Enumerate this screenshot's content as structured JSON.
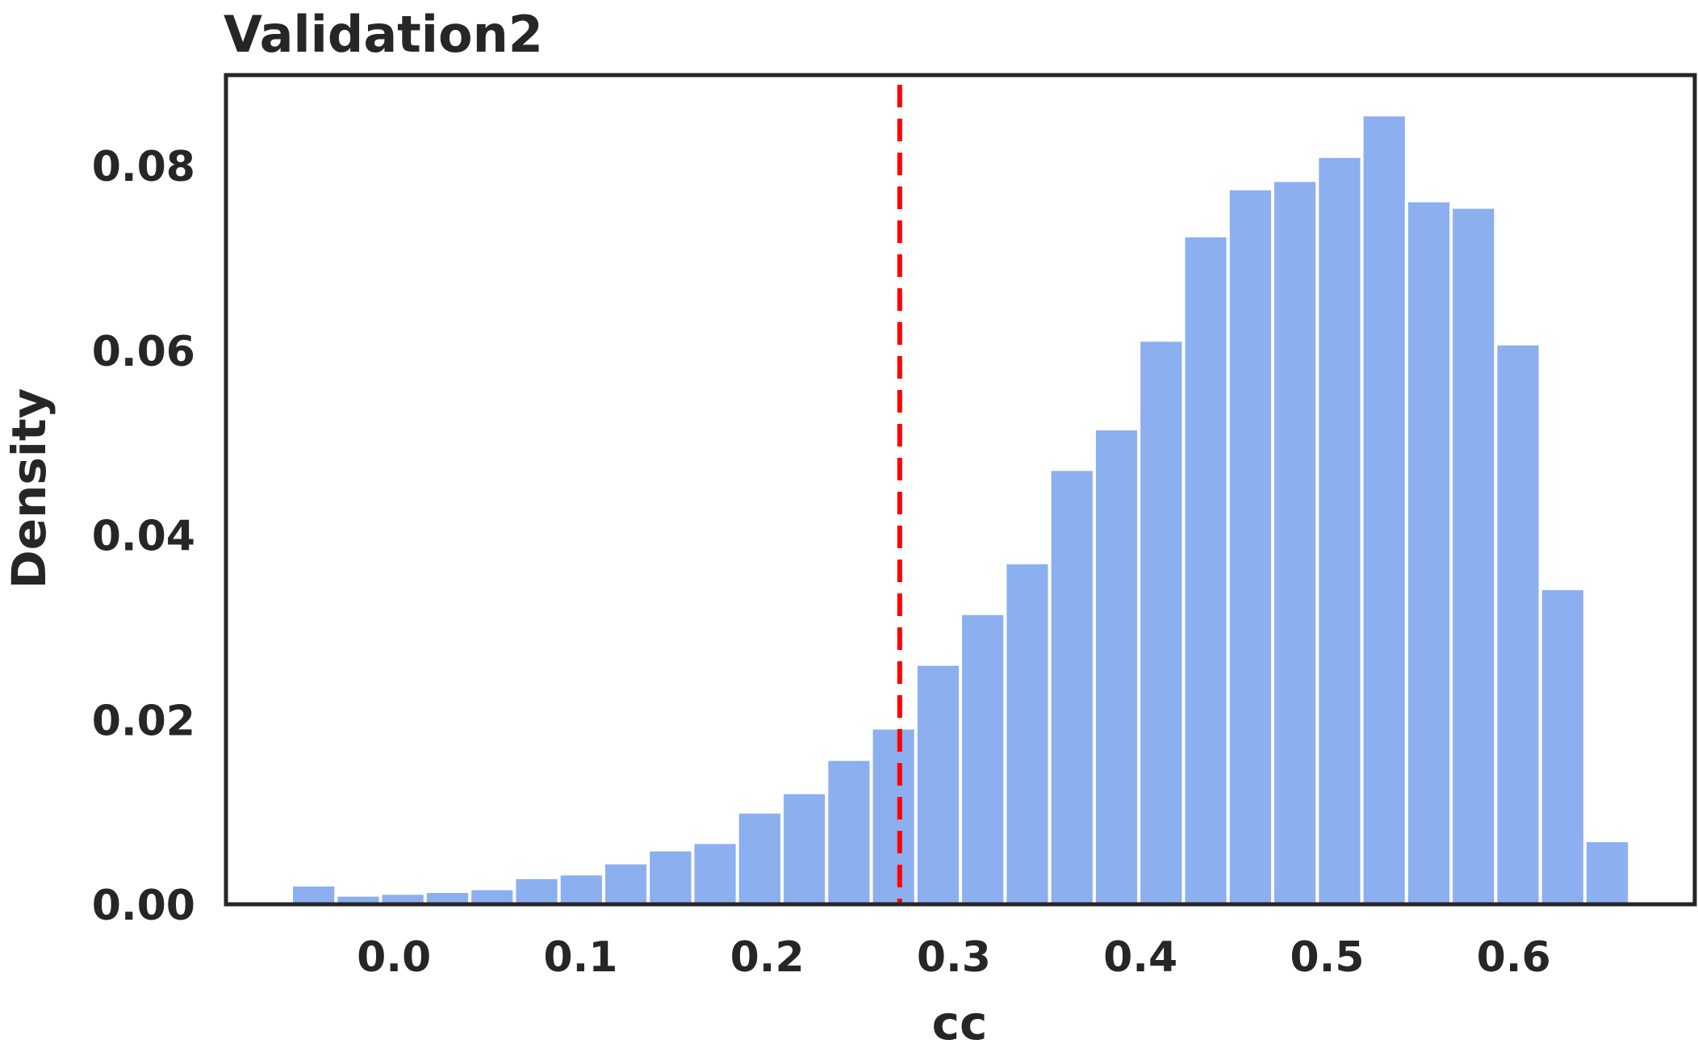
{
  "chart_data": {
    "type": "bar",
    "title": "Validation2",
    "xlabel": "cc",
    "ylabel": "Density",
    "bar_color": "#8cafef",
    "threshold_color": "#ff0000",
    "threshold_x": 0.271,
    "xlim": [
      -0.09,
      0.697
    ],
    "ylim": [
      0,
      0.0898
    ],
    "xticks": [
      0.0,
      0.1,
      0.2,
      0.3,
      0.4,
      0.5,
      0.6
    ],
    "xtick_labels": [
      "0.0",
      "0.1",
      "0.2",
      "0.3",
      "0.4",
      "0.5",
      "0.6"
    ],
    "yticks": [
      0.0,
      0.02,
      0.04,
      0.06,
      0.08
    ],
    "ytick_labels": [
      "0.00",
      "0.02",
      "0.04",
      "0.06",
      "0.08"
    ],
    "bin_width": 0.0239,
    "bin_centers": [
      -0.043,
      -0.0191,
      0.0048,
      0.0287,
      0.0526,
      0.0765,
      0.1004,
      0.1243,
      0.1482,
      0.1721,
      0.196,
      0.2199,
      0.2438,
      0.2677,
      0.2916,
      0.3155,
      0.3394,
      0.3633,
      0.3872,
      0.4111,
      0.435,
      0.4589,
      0.4828,
      0.5067,
      0.5306,
      0.5545,
      0.5784,
      0.6023,
      0.6262,
      0.6501
    ],
    "values": [
      0.0021,
      0.001,
      0.0012,
      0.0014,
      0.0017,
      0.0029,
      0.0033,
      0.0045,
      0.0059,
      0.0067,
      0.01,
      0.0121,
      0.0157,
      0.0191,
      0.026,
      0.0315,
      0.037,
      0.0471,
      0.0515,
      0.0611,
      0.0724,
      0.0775,
      0.0784,
      0.081,
      0.0855,
      0.0762,
      0.0755,
      0.0607,
      0.0342,
      0.0069
    ]
  }
}
